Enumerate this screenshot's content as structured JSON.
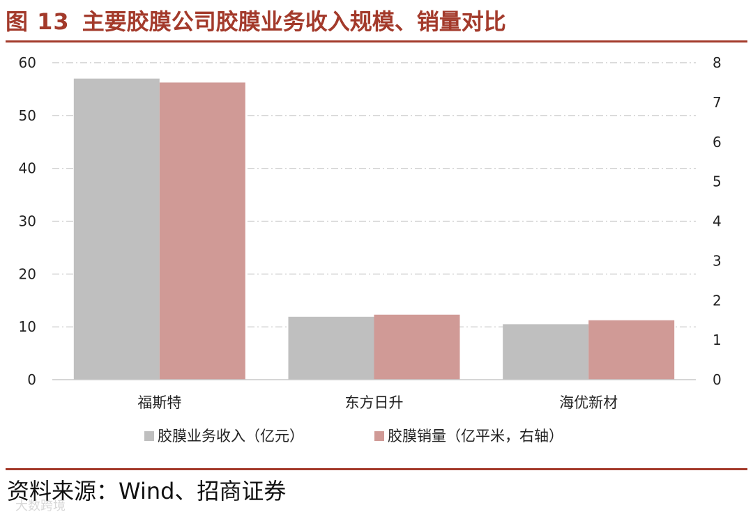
{
  "figure": {
    "number": "图 13",
    "title": "主要胶膜公司胶膜业务收入规模、销量对比"
  },
  "chart_data": {
    "type": "bar",
    "categories": [
      "福斯特",
      "东方日升",
      "海优新材"
    ],
    "series": [
      {
        "name": "胶膜业务收入（亿元）",
        "axis": "left",
        "color": "#bfbfbf",
        "values": [
          57,
          11.9,
          10.5
        ]
      },
      {
        "name": "胶膜销量（亿平米，右轴）",
        "axis": "right",
        "color": "#d09a96",
        "values": [
          7.5,
          1.64,
          1.5
        ]
      }
    ],
    "y_left": {
      "range": [
        0,
        60
      ],
      "ticks": [
        0,
        10,
        20,
        30,
        40,
        50,
        60
      ]
    },
    "y_right": {
      "range": [
        0,
        8
      ],
      "ticks": [
        0,
        1,
        2,
        3,
        4,
        5,
        6,
        7,
        8
      ]
    },
    "grid": true,
    "legend_position": "bottom"
  },
  "source": "资料来源：Wind、招商证券",
  "watermark": "大数跨境"
}
